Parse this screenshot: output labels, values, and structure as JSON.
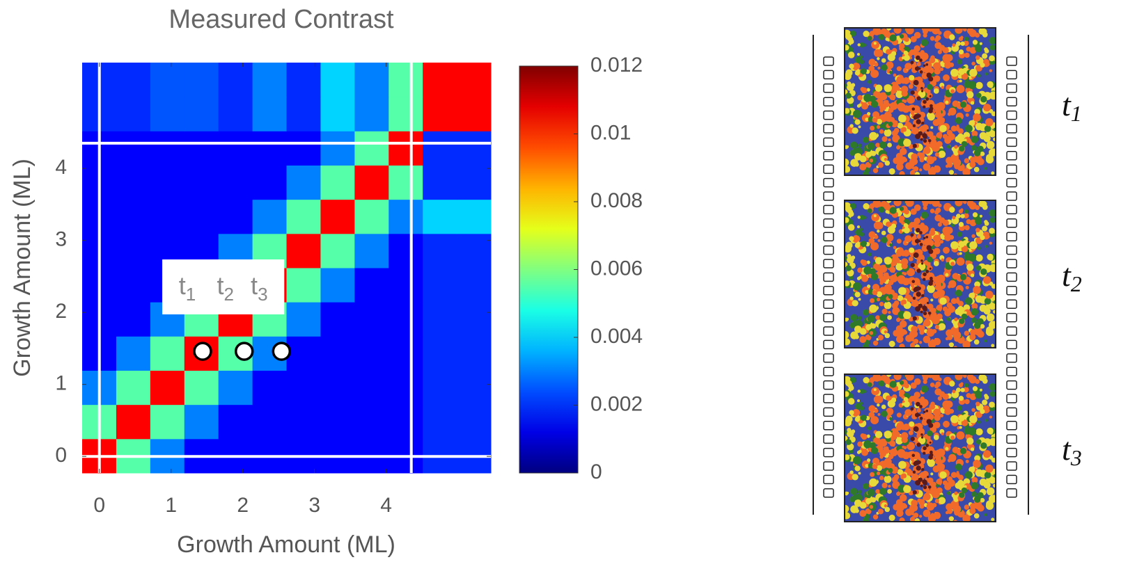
{
  "chart_data": {
    "type": "heatmap",
    "title": "Measured Contrast",
    "x_label": "Growth Amount (ML)",
    "y_label": "Growth Amount (ML)",
    "xlim": [
      -0.24,
      5.46
    ],
    "ylim": [
      -0.23,
      5.47
    ],
    "xticks": [
      0,
      1,
      2,
      3,
      4
    ],
    "yticks": [
      0,
      1,
      2,
      3,
      4
    ],
    "x_edges": [
      -0.24,
      0.235,
      0.71,
      1.185,
      1.66,
      2.135,
      2.61,
      3.085,
      3.56,
      4.035,
      4.51,
      4.985,
      5.46
    ],
    "y_edges": [
      -0.23,
      0.245,
      0.72,
      1.195,
      1.67,
      2.145,
      2.62,
      3.095,
      3.57,
      4.045,
      4.52,
      4.995,
      5.47
    ],
    "z": [
      [
        0.0105,
        0.0055,
        0.003,
        0.0015,
        0.0015,
        0.0015,
        0.0015,
        0.0015,
        0.0015,
        0.0015,
        0.002,
        0.002
      ],
      [
        0.0055,
        0.0105,
        0.0055,
        0.003,
        0.0015,
        0.0015,
        0.0015,
        0.0015,
        0.0015,
        0.0015,
        0.002,
        0.002
      ],
      [
        0.003,
        0.0055,
        0.0105,
        0.0055,
        0.003,
        0.0015,
        0.0015,
        0.0015,
        0.0015,
        0.0015,
        0.002,
        0.002
      ],
      [
        0.0015,
        0.003,
        0.0055,
        0.0105,
        0.0055,
        0.003,
        0.0015,
        0.0015,
        0.0015,
        0.0015,
        0.002,
        0.002
      ],
      [
        0.0015,
        0.0015,
        0.003,
        0.0055,
        0.0105,
        0.0055,
        0.003,
        0.0015,
        0.0015,
        0.0015,
        0.002,
        0.002
      ],
      [
        0.0015,
        0.0015,
        0.0015,
        0.003,
        0.0055,
        0.0105,
        0.0055,
        0.003,
        0.0015,
        0.0015,
        0.002,
        0.002
      ],
      [
        0.0015,
        0.0015,
        0.0015,
        0.0015,
        0.003,
        0.0055,
        0.0105,
        0.0055,
        0.003,
        0.0015,
        0.002,
        0.002
      ],
      [
        0.0015,
        0.0015,
        0.0015,
        0.0015,
        0.0015,
        0.003,
        0.0055,
        0.0105,
        0.0055,
        0.003,
        0.004,
        0.004
      ],
      [
        0.0015,
        0.0015,
        0.0015,
        0.0015,
        0.0015,
        0.0015,
        0.003,
        0.0055,
        0.0105,
        0.0055,
        0.002,
        0.002
      ],
      [
        0.0015,
        0.0015,
        0.0015,
        0.0015,
        0.0015,
        0.0015,
        0.0015,
        0.003,
        0.0055,
        0.0105,
        0.002,
        0.002
      ],
      [
        0.002,
        0.002,
        0.0025,
        0.0025,
        0.002,
        0.003,
        0.002,
        0.004,
        0.003,
        0.0055,
        0.0105,
        0.0105
      ],
      [
        0.002,
        0.002,
        0.0025,
        0.0025,
        0.002,
        0.003,
        0.002,
        0.004,
        0.003,
        0.0055,
        0.0105,
        0.0105
      ]
    ],
    "guide_lines": [
      0,
      4.35
    ],
    "colorbar": {
      "lim": [
        0,
        0.012
      ],
      "ticks": [
        0,
        0.002,
        0.004,
        0.006,
        0.008,
        0.01,
        0.012
      ]
    },
    "points": {
      "x": [
        1.44,
        2.02,
        2.54
      ],
      "y": [
        1.46,
        1.46,
        1.46
      ]
    },
    "annotations": [
      {
        "text": "t",
        "sub": "1"
      },
      {
        "text": "t",
        "sub": "2"
      },
      {
        "text": "t",
        "sub": "3"
      }
    ]
  },
  "film_strip": {
    "labels": [
      {
        "text": "t",
        "sub": "1"
      },
      {
        "text": "t",
        "sub": "2"
      },
      {
        "text": "t",
        "sub": "3"
      }
    ]
  }
}
